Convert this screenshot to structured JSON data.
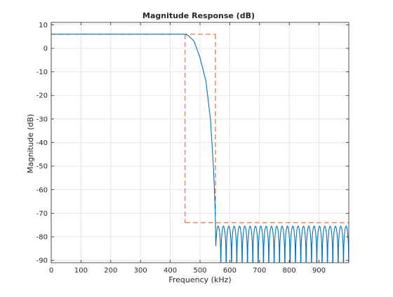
{
  "chart_data": {
    "type": "line",
    "title": "Magnitude Response (dB)",
    "xlabel": "Frequency (kHz)",
    "ylabel": "Magnitude (dB)",
    "xlim": [
      0,
      1000
    ],
    "ylim": [
      -91,
      11
    ],
    "grid": true,
    "x_ticks": [
      0,
      100,
      200,
      300,
      400,
      500,
      600,
      700,
      800,
      900
    ],
    "y_ticks": [
      10,
      0,
      -10,
      -20,
      -30,
      -40,
      -50,
      -60,
      -70,
      -80,
      -90
    ],
    "x_tick_labels": [
      "0",
      "100",
      "200",
      "300",
      "400",
      "500",
      "600",
      "700",
      "800",
      "900"
    ],
    "y_tick_labels": [
      "10",
      "0",
      "-10",
      "-20",
      "-30",
      "-40",
      "-50",
      "-60",
      "-70",
      "-80",
      "-90"
    ],
    "line_color": "#0072bd",
    "mask_color": "#d95319",
    "response": {
      "passband_gain_db": 6,
      "passband_edge_khz": 450,
      "rolloff": [
        [
          450,
          6
        ],
        [
          460,
          5.5
        ],
        [
          480,
          3
        ],
        [
          500,
          -4
        ],
        [
          520,
          -14
        ],
        [
          535,
          -30
        ],
        [
          545,
          -50
        ],
        [
          550,
          -65
        ],
        [
          552,
          -74
        ]
      ],
      "stopband_start_khz": 552,
      "stopband_lobe_peak_db": -75.5,
      "stopband_lobe_count": 25
    },
    "mask": {
      "passband_upper": [
        [
          0,
          6
        ],
        [
          552,
          6
        ]
      ],
      "passband_lower_edge": [
        [
          450,
          6
        ],
        [
          450,
          -74
        ]
      ],
      "stopband_upper": [
        [
          450,
          -74
        ],
        [
          1000,
          -74
        ]
      ],
      "stopband_edge": [
        [
          552,
          6
        ],
        [
          552,
          -74
        ]
      ]
    }
  }
}
